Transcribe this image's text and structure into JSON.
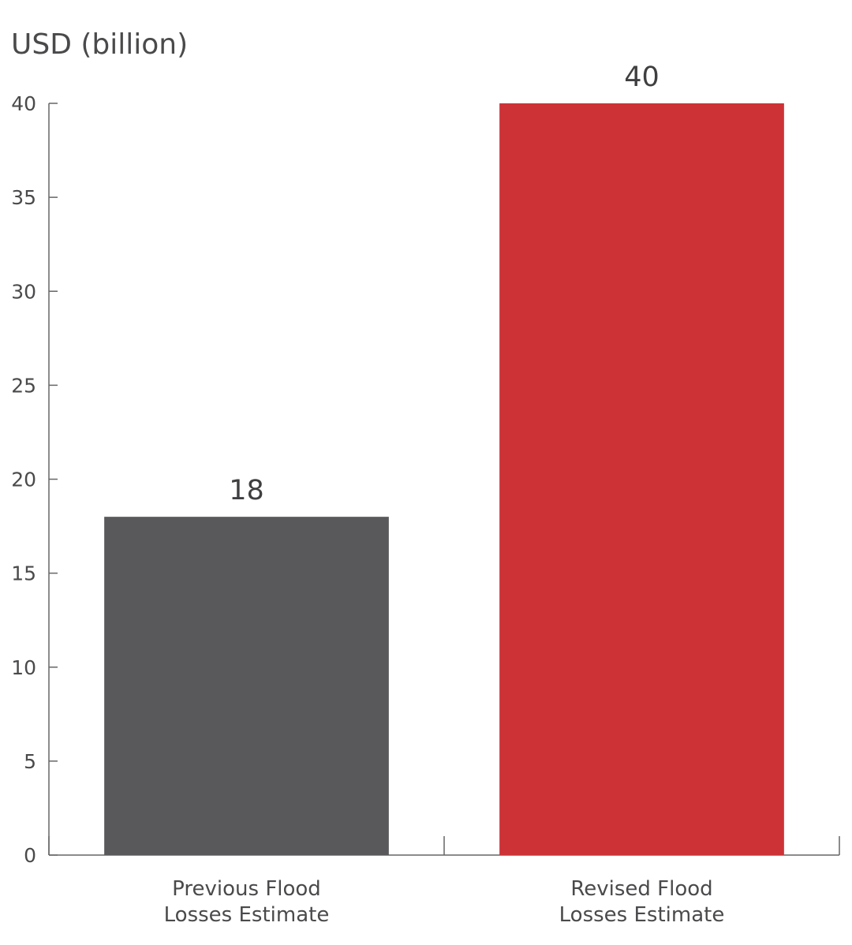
{
  "chart_data": {
    "type": "bar",
    "ylabel": "USD (billion)",
    "categories": [
      [
        "Previous Flood",
        "Losses Estimate"
      ],
      [
        "Revised Flood",
        "Losses Estimate"
      ]
    ],
    "values": [
      18,
      40
    ],
    "data_labels": [
      "18",
      "40"
    ],
    "bar_colors": [
      "#59595b",
      "#cd3237"
    ],
    "ylim": [
      0,
      40
    ],
    "yticks": [
      0,
      5,
      10,
      15,
      20,
      25,
      30,
      35,
      40
    ],
    "grid": false,
    "legend": "none"
  }
}
